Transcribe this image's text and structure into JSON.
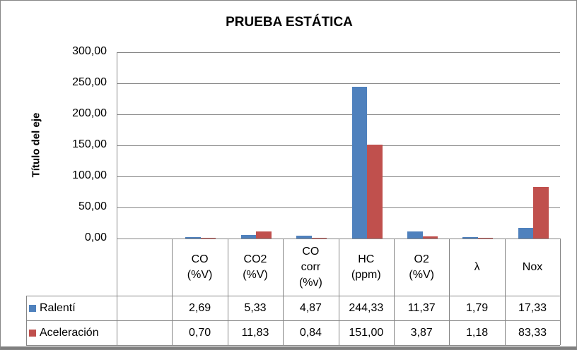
{
  "chart_data": {
    "type": "bar",
    "title": "PRUEBA ESTÁTICA",
    "ylabel": "Título del eje",
    "xlabel": "",
    "ylim": [
      0,
      300
    ],
    "yticks": [
      "0,00",
      "50,00",
      "100,00",
      "150,00",
      "200,00",
      "250,00",
      "300,00"
    ],
    "grid": true,
    "legend": "data-table",
    "categories": [
      "",
      "CO\n(%V)",
      "CO2\n(%V)",
      "CO\ncorr\n(%v)",
      "HC\n(ppm)",
      "O2\n(%V)",
      "λ",
      "Nox"
    ],
    "series": [
      {
        "name": "Ralentí",
        "color": "#4F81BD",
        "values": [
          null,
          2.69,
          5.33,
          4.87,
          244.33,
          11.37,
          1.79,
          17.33
        ],
        "labels": [
          "",
          "2,69",
          "5,33",
          "4,87",
          "244,33",
          "11,37",
          "1,79",
          "17,33"
        ]
      },
      {
        "name": "Aceleración",
        "color": "#C0504D",
        "values": [
          null,
          0.7,
          11.83,
          0.84,
          151.0,
          3.87,
          1.18,
          83.33
        ],
        "labels": [
          "",
          "0,70",
          "11,83",
          "0,84",
          "151,00",
          "3,87",
          "1,18",
          "83,33"
        ]
      }
    ]
  }
}
